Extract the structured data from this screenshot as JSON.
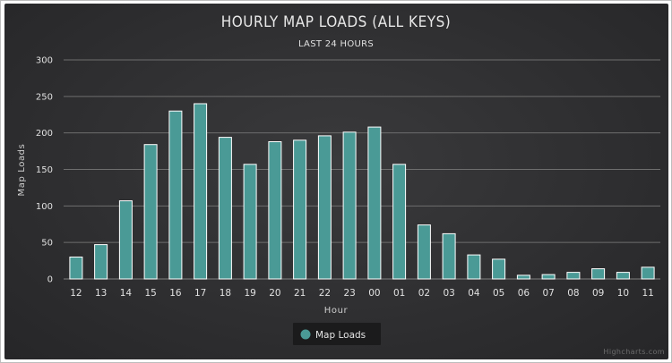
{
  "chart_data": {
    "type": "bar",
    "title": "HOURLY MAP LOADS (ALL KEYS)",
    "subtitle": "LAST 24 HOURS",
    "xlabel": "Hour",
    "ylabel": "Map Loads",
    "categories": [
      "12",
      "13",
      "14",
      "15",
      "16",
      "17",
      "18",
      "19",
      "20",
      "21",
      "22",
      "23",
      "00",
      "01",
      "02",
      "03",
      "04",
      "05",
      "06",
      "07",
      "08",
      "09",
      "10",
      "11"
    ],
    "series": [
      {
        "name": "Map Loads",
        "values": [
          30,
          47,
          107,
          184,
          230,
          240,
          194,
          157,
          188,
          190,
          196,
          201,
          208,
          157,
          74,
          62,
          33,
          27,
          5,
          6,
          9,
          14,
          9,
          16
        ]
      }
    ],
    "ylim": [
      0,
      300
    ],
    "yticks": [
      0,
      50,
      100,
      150,
      200,
      250,
      300
    ],
    "grid": true,
    "legend": "bottom-center",
    "colors": {
      "bar": "#4a9a96",
      "bar_stroke": "#ffffff",
      "background": "#333335",
      "gridline": "#6e6e6e"
    }
  },
  "credits": "Highcharts.com"
}
